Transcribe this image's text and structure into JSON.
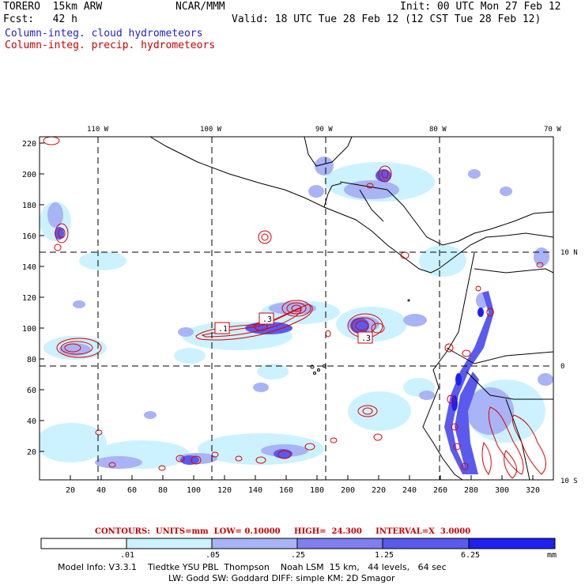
{
  "header": {
    "model": "TORERO  15km ARW",
    "forecast": "Fcst:   42 h",
    "center": "NCAR/MMM",
    "init": "Init: 00 UTC Mon 27 Feb 12",
    "valid": "Valid: 18 UTC Tue 28 Feb 12 (12 CST Tue 28 Feb 12)",
    "legend_cloud": "Column-integ. cloud hydrometeors",
    "legend_precip": "Column-integ. precip. hydrometeors"
  },
  "map": {
    "lon_labels": [
      "110 W",
      "100 W",
      "90 W",
      "80 W",
      "70 W"
    ],
    "lat_labels": [
      "10 N",
      "0",
      "10 S"
    ],
    "y_ticks": [
      "220",
      "200",
      "180",
      "160",
      "140",
      "120",
      "100",
      "80",
      "60",
      "40",
      "20"
    ],
    "x_ticks": [
      "20",
      "40",
      "60",
      "80",
      "100",
      "120",
      "140",
      "160",
      "180",
      "200",
      "220",
      "240",
      "260",
      "280",
      "300",
      "320"
    ],
    "boxes": [
      ".1",
      ".3",
      ".3"
    ]
  },
  "colorbar": {
    "contours_line": "CONTOURS:  UNITS=mm  LOW= 0.10000     HIGH=  24.300     INTERVAL=X  3.0000",
    "labels": [
      ".01",
      ".05",
      ".25",
      "1.25",
      "6.25"
    ],
    "unit": "mm",
    "colors": [
      "#ffffff",
      "#ccf2ff",
      "#a8b4f5",
      "#7f7ff0",
      "#5a5aee",
      "#2020f0"
    ]
  },
  "footer": {
    "line1": "Model Info: V3.3.1    Tiedtke YSU PBL  Thompson    Noah LSM  15 km,   44 levels,   64 sec",
    "line2": "LW: Godd SW: Goddard DIFF: simple KM: 2D Smagor"
  }
}
